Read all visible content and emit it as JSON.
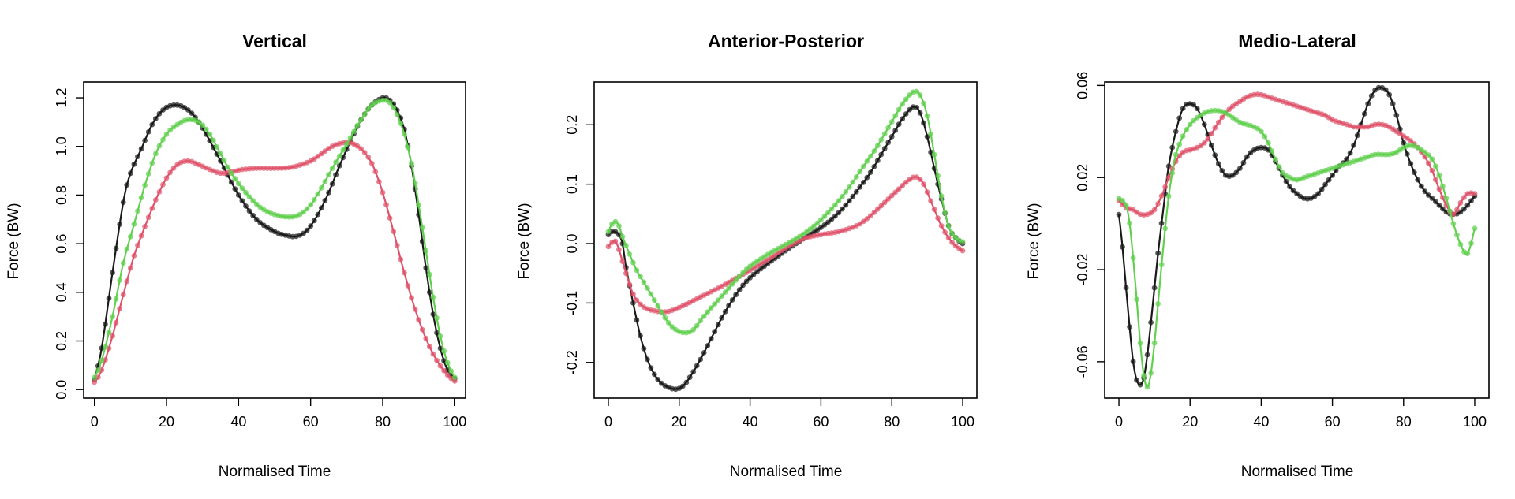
{
  "figure": {
    "colors": {
      "black": "#1a1a1a",
      "red": "#DF536B",
      "green": "#61D04F"
    }
  },
  "chart_data": [
    {
      "type": "line",
      "title": "Vertical",
      "xlabel": "Normalised Time",
      "ylabel": "Force (BW)",
      "xlim": [
        -3,
        103
      ],
      "ylim": [
        -0.035,
        1.265
      ],
      "xticks": [
        "0",
        "20",
        "40",
        "60",
        "80",
        "100"
      ],
      "yticks": [
        "0.0",
        "0.2",
        "0.4",
        "0.6",
        "0.8",
        "1.0",
        "1.2"
      ],
      "grid": false,
      "series": [
        {
          "color": "black",
          "x": [
            0,
            2,
            5,
            8,
            10,
            13,
            16,
            19,
            22,
            25,
            28,
            31,
            35,
            40,
            45,
            50,
            53,
            56,
            59,
            62,
            65,
            68,
            71,
            74,
            77,
            80,
            82,
            84,
            86,
            88,
            90,
            92,
            94,
            96,
            98,
            100
          ],
          "y": [
            0.04,
            0.17,
            0.48,
            0.77,
            0.89,
            0.99,
            1.09,
            1.15,
            1.17,
            1.16,
            1.12,
            1.05,
            0.94,
            0.8,
            0.7,
            0.65,
            0.635,
            0.63,
            0.655,
            0.72,
            0.81,
            0.92,
            1.02,
            1.11,
            1.17,
            1.2,
            1.19,
            1.15,
            1.07,
            0.92,
            0.72,
            0.5,
            0.31,
            0.17,
            0.08,
            0.045
          ]
        },
        {
          "color": "red",
          "x": [
            0,
            2,
            5,
            8,
            11,
            14,
            17,
            20,
            23,
            26,
            29,
            32,
            35,
            38,
            41,
            45,
            50,
            55,
            60,
            63,
            66,
            69,
            71,
            74,
            77,
            80,
            83,
            86,
            89,
            92,
            95,
            98,
            100
          ],
          "y": [
            0.03,
            0.08,
            0.22,
            0.39,
            0.55,
            0.67,
            0.78,
            0.87,
            0.925,
            0.94,
            0.925,
            0.905,
            0.89,
            0.895,
            0.905,
            0.91,
            0.91,
            0.915,
            0.94,
            0.97,
            1.0,
            1.015,
            1.015,
            0.99,
            0.93,
            0.81,
            0.65,
            0.48,
            0.33,
            0.21,
            0.12,
            0.06,
            0.035
          ]
        },
        {
          "color": "green",
          "x": [
            0,
            2,
            5,
            8,
            11,
            14,
            17,
            20,
            23,
            26,
            29,
            32,
            35,
            38,
            42,
            46,
            50,
            54,
            57,
            60,
            63,
            66,
            70,
            74,
            77,
            80,
            82,
            84,
            86,
            88,
            90,
            92,
            94,
            96,
            98,
            100
          ],
          "y": [
            0.05,
            0.12,
            0.3,
            0.52,
            0.68,
            0.84,
            0.97,
            1.05,
            1.09,
            1.11,
            1.1,
            1.05,
            0.97,
            0.89,
            0.81,
            0.75,
            0.72,
            0.71,
            0.72,
            0.76,
            0.83,
            0.91,
            1.01,
            1.11,
            1.17,
            1.19,
            1.18,
            1.13,
            1.05,
            0.93,
            0.76,
            0.57,
            0.38,
            0.22,
            0.11,
            0.05
          ]
        }
      ]
    },
    {
      "type": "line",
      "title": "Anterior-Posterior",
      "xlabel": "Normalised Time",
      "ylabel": "Force (BW)",
      "xlim": [
        -4,
        104
      ],
      "ylim": [
        -0.26,
        0.272
      ],
      "xticks": [
        "0",
        "20",
        "40",
        "60",
        "80",
        "100"
      ],
      "yticks": [
        "-0.2",
        "-0.1",
        "0.0",
        "0.1",
        "0.2"
      ],
      "grid": false,
      "series": [
        {
          "color": "black",
          "x": [
            0,
            1,
            2,
            3,
            4,
            5,
            7,
            9,
            11,
            13,
            15,
            17,
            19,
            21,
            23,
            26,
            29,
            32,
            35,
            38,
            41,
            44,
            47,
            50,
            53,
            56,
            59,
            62,
            65,
            68,
            71,
            74,
            77,
            80,
            83,
            86,
            88,
            90,
            93,
            96,
            98,
            100
          ],
          "y": [
            0.015,
            0.02,
            0.02,
            0.015,
            0.0,
            -0.04,
            -0.1,
            -0.155,
            -0.195,
            -0.22,
            -0.235,
            -0.242,
            -0.245,
            -0.24,
            -0.225,
            -0.195,
            -0.16,
            -0.125,
            -0.095,
            -0.07,
            -0.052,
            -0.038,
            -0.025,
            -0.012,
            0.0,
            0.012,
            0.023,
            0.036,
            0.052,
            0.072,
            0.095,
            0.12,
            0.15,
            0.18,
            0.21,
            0.23,
            0.22,
            0.18,
            0.1,
            0.03,
            0.01,
            0.0
          ]
        },
        {
          "color": "red",
          "x": [
            0,
            1,
            2,
            3,
            5,
            7,
            9,
            11,
            13,
            15,
            17,
            19,
            22,
            25,
            30,
            35,
            40,
            45,
            50,
            55,
            60,
            65,
            70,
            73,
            76,
            79,
            82,
            85,
            87,
            89,
            91,
            94,
            97,
            100
          ],
          "y": [
            -0.005,
            0.002,
            0.004,
            -0.01,
            -0.05,
            -0.085,
            -0.102,
            -0.11,
            -0.113,
            -0.115,
            -0.114,
            -0.11,
            -0.102,
            -0.093,
            -0.078,
            -0.062,
            -0.045,
            -0.027,
            -0.008,
            0.008,
            0.015,
            0.02,
            0.03,
            0.042,
            0.058,
            0.075,
            0.092,
            0.108,
            0.112,
            0.1,
            0.072,
            0.03,
            0.002,
            -0.012
          ]
        },
        {
          "color": "green",
          "x": [
            0,
            1,
            2,
            3,
            4,
            6,
            8,
            10,
            12,
            14,
            16,
            18,
            20,
            22,
            24,
            26,
            28,
            31,
            34,
            37,
            40,
            44,
            48,
            52,
            56,
            60,
            64,
            68,
            72,
            76,
            80,
            83,
            86,
            88,
            90,
            92,
            94,
            96,
            98,
            100
          ],
          "y": [
            0.02,
            0.033,
            0.037,
            0.03,
            0.012,
            -0.018,
            -0.045,
            -0.065,
            -0.085,
            -0.105,
            -0.125,
            -0.14,
            -0.148,
            -0.15,
            -0.145,
            -0.13,
            -0.115,
            -0.095,
            -0.075,
            -0.055,
            -0.038,
            -0.022,
            -0.008,
            0.005,
            0.02,
            0.04,
            0.065,
            0.095,
            0.13,
            0.165,
            0.205,
            0.235,
            0.255,
            0.25,
            0.215,
            0.15,
            0.08,
            0.03,
            0.01,
            0.003
          ]
        }
      ]
    },
    {
      "type": "line",
      "title": "Medio-Lateral",
      "xlabel": "Normalised Time",
      "ylabel": "Force (BW)",
      "xlim": [
        -4,
        104
      ],
      "ylim": [
        -0.0758,
        0.0615
      ],
      "xticks": [
        "0",
        "20",
        "40",
        "60",
        "80",
        "100"
      ],
      "yticks": [
        "-0.06",
        "-0.02",
        "0.02",
        "0.06"
      ],
      "grid": false,
      "series": [
        {
          "color": "black",
          "x": [
            0,
            1,
            2,
            3,
            4,
            5,
            6,
            7,
            8,
            9,
            10,
            11,
            12,
            13,
            14,
            16,
            18,
            20,
            22,
            24,
            26,
            28,
            30,
            32,
            34,
            36,
            38,
            40,
            42,
            44,
            46,
            48,
            50,
            52,
            54,
            56,
            58,
            60,
            62,
            64,
            66,
            68,
            70,
            72,
            74,
            76,
            78,
            80,
            82,
            84,
            86,
            88,
            90,
            92,
            94,
            96,
            98,
            100
          ],
          "y": [
            0.004,
            -0.01,
            -0.028,
            -0.045,
            -0.06,
            -0.068,
            -0.07,
            -0.067,
            -0.057,
            -0.043,
            -0.028,
            -0.013,
            0.0,
            0.013,
            0.025,
            0.04,
            0.05,
            0.052,
            0.05,
            0.043,
            0.034,
            0.026,
            0.021,
            0.021,
            0.024,
            0.029,
            0.032,
            0.033,
            0.032,
            0.027,
            0.021,
            0.016,
            0.013,
            0.011,
            0.011,
            0.013,
            0.017,
            0.021,
            0.025,
            0.028,
            0.034,
            0.043,
            0.052,
            0.058,
            0.059,
            0.056,
            0.047,
            0.035,
            0.026,
            0.019,
            0.014,
            0.011,
            0.008,
            0.005,
            0.004,
            0.005,
            0.008,
            0.012
          ]
        },
        {
          "color": "red",
          "x": [
            0,
            2,
            4,
            6,
            8,
            10,
            12,
            14,
            16,
            18,
            20,
            22,
            24,
            26,
            28,
            30,
            32,
            34,
            36,
            38,
            40,
            42,
            44,
            46,
            48,
            50,
            52,
            54,
            56,
            58,
            60,
            62,
            64,
            66,
            68,
            70,
            72,
            74,
            76,
            78,
            80,
            82,
            84,
            86,
            88,
            90,
            92,
            94,
            96,
            98,
            100
          ],
          "y": [
            0.01,
            0.007,
            0.006,
            0.004,
            0.004,
            0.006,
            0.012,
            0.02,
            0.027,
            0.031,
            0.032,
            0.033,
            0.035,
            0.039,
            0.044,
            0.048,
            0.051,
            0.053,
            0.055,
            0.056,
            0.056,
            0.055,
            0.054,
            0.053,
            0.052,
            0.051,
            0.05,
            0.049,
            0.048,
            0.047,
            0.045,
            0.044,
            0.043,
            0.042,
            0.042,
            0.042,
            0.043,
            0.043,
            0.042,
            0.04,
            0.038,
            0.036,
            0.033,
            0.029,
            0.023,
            0.015,
            0.008,
            0.004,
            0.009,
            0.013,
            0.013
          ]
        },
        {
          "color": "green",
          "x": [
            0,
            1,
            2,
            3,
            4,
            5,
            6,
            7,
            8,
            9,
            10,
            11,
            12,
            13,
            14,
            15,
            16,
            18,
            20,
            22,
            24,
            26,
            28,
            30,
            32,
            34,
            36,
            38,
            40,
            42,
            44,
            46,
            48,
            50,
            52,
            54,
            56,
            58,
            60,
            62,
            64,
            66,
            68,
            70,
            72,
            74,
            76,
            78,
            80,
            82,
            84,
            86,
            88,
            90,
            92,
            94,
            96,
            98,
            100
          ],
          "y": [
            0.011,
            0.01,
            0.008,
            0.0,
            -0.015,
            -0.033,
            -0.052,
            -0.066,
            -0.071,
            -0.065,
            -0.052,
            -0.035,
            -0.018,
            -0.002,
            0.012,
            0.022,
            0.03,
            0.038,
            0.043,
            0.046,
            0.048,
            0.049,
            0.049,
            0.048,
            0.046,
            0.044,
            0.043,
            0.042,
            0.04,
            0.035,
            0.028,
            0.022,
            0.02,
            0.019,
            0.02,
            0.021,
            0.022,
            0.023,
            0.024,
            0.025,
            0.026,
            0.027,
            0.028,
            0.029,
            0.03,
            0.03,
            0.03,
            0.031,
            0.033,
            0.034,
            0.033,
            0.031,
            0.028,
            0.021,
            0.011,
            0.0,
            -0.009,
            -0.013,
            -0.002
          ]
        }
      ]
    }
  ]
}
